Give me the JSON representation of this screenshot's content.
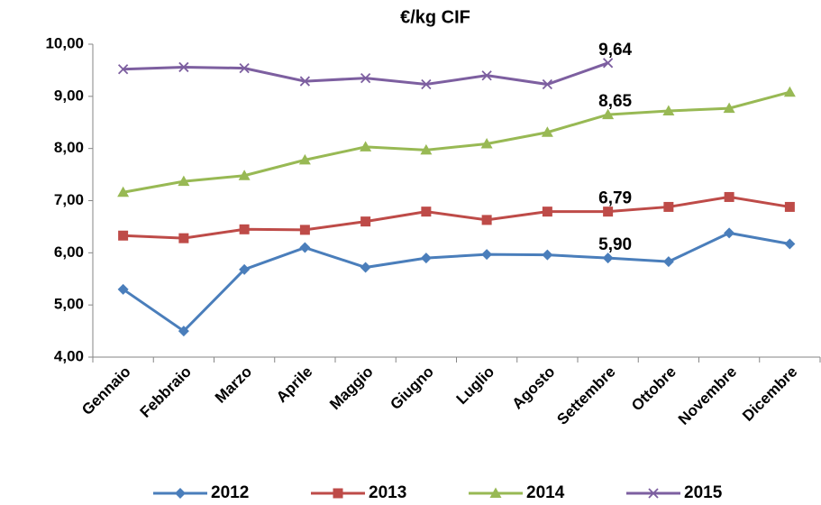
{
  "chart_data": {
    "type": "line",
    "title": "€/kg CIF",
    "categories": [
      "Gennaio",
      "Febbraio",
      "Marzo",
      "Aprile",
      "Maggio",
      "Giugno",
      "Luglio",
      "Agosto",
      "Settembre",
      "Ottobre",
      "Novembre",
      "Dicembre"
    ],
    "ylim": [
      4,
      10
    ],
    "yticks": [
      {
        "value": 4,
        "label": "4,00"
      },
      {
        "value": 5,
        "label": "5,00"
      },
      {
        "value": 6,
        "label": "6,00"
      },
      {
        "value": 7,
        "label": "7,00"
      },
      {
        "value": 8,
        "label": "8,00"
      },
      {
        "value": 9,
        "label": "9,00"
      },
      {
        "value": 10,
        "label": "10,00"
      }
    ],
    "grid": false,
    "legend": "bottom",
    "series": [
      {
        "name": "2012",
        "color": "#4a7ebb",
        "marker": "diamond",
        "values": [
          5.3,
          4.5,
          5.68,
          6.1,
          5.72,
          5.9,
          5.97,
          5.96,
          5.9,
          5.83,
          6.38,
          6.17
        ],
        "value_labels": [
          null,
          null,
          null,
          null,
          null,
          null,
          null,
          null,
          "5,90",
          null,
          null,
          null
        ]
      },
      {
        "name": "2013",
        "color": "#be4b48",
        "marker": "square",
        "values": [
          6.33,
          6.28,
          6.45,
          6.44,
          6.6,
          6.79,
          6.63,
          6.79,
          6.79,
          6.88,
          7.07,
          6.88
        ],
        "value_labels": [
          null,
          null,
          null,
          null,
          null,
          null,
          null,
          null,
          "6,79",
          null,
          null,
          null
        ]
      },
      {
        "name": "2014",
        "color": "#98b954",
        "marker": "triangle",
        "values": [
          7.16,
          7.37,
          7.48,
          7.78,
          8.03,
          7.97,
          8.09,
          8.31,
          8.65,
          8.72,
          8.77,
          9.08
        ],
        "value_labels": [
          null,
          null,
          null,
          null,
          null,
          null,
          null,
          null,
          "8,65",
          null,
          null,
          null
        ]
      },
      {
        "name": "2015",
        "color": "#7d5fa0",
        "marker": "x",
        "values": [
          9.52,
          9.56,
          9.54,
          9.29,
          9.35,
          9.23,
          9.4,
          9.23,
          9.64,
          null,
          null,
          null
        ],
        "value_labels": [
          null,
          null,
          null,
          null,
          null,
          null,
          null,
          null,
          "9,64",
          null,
          null,
          null
        ]
      }
    ]
  }
}
